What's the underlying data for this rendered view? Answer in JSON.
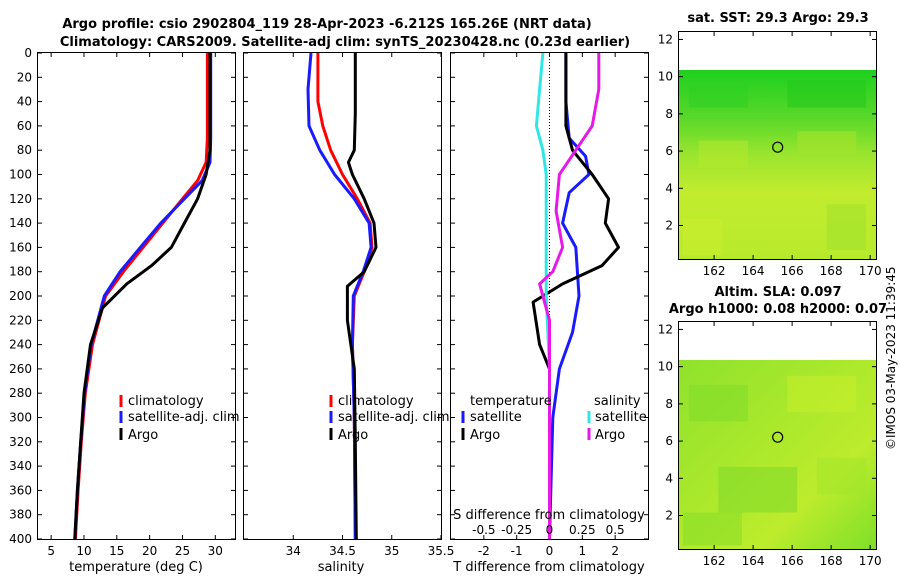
{
  "title_line1": "Argo profile: csio 2902804_119 28-Apr-2023 -6.212S 165.26E (NRT data)",
  "title_line2": "Climatology: CARS2009. Satellite-adj clim: synTS_20230428.nc (0.23d earlier)",
  "side_stamp": "©IMOS 03-May-2023 11:39:45",
  "colors": {
    "climatology": "#ff0000",
    "satellite": "#1a1aff",
    "argo": "#000000",
    "sat_salinity": "#33e6e6",
    "argo_salinity": "#e619e6"
  },
  "chart_data": [
    {
      "type": "line",
      "name": "temperature",
      "xlabel": "temperature (deg C)",
      "xlim": [
        3,
        33
      ],
      "xticks": [
        5,
        10,
        15,
        20,
        25,
        30
      ],
      "ylim": [
        400,
        0
      ],
      "yticks": [
        0,
        20,
        40,
        60,
        80,
        100,
        120,
        140,
        160,
        180,
        200,
        220,
        240,
        260,
        280,
        300,
        320,
        340,
        360,
        380,
        400
      ],
      "legend": [
        "climatology",
        "satellite-adj. clim",
        "Argo"
      ],
      "series": [
        {
          "name": "climatology",
          "color": "#ff0000",
          "points": [
            [
              28.8,
              0
            ],
            [
              28.8,
              40
            ],
            [
              28.8,
              70
            ],
            [
              28.6,
              90
            ],
            [
              27.3,
              105
            ],
            [
              25,
              120
            ],
            [
              22,
              140
            ],
            [
              19,
              160
            ],
            [
              16,
              180
            ],
            [
              13.3,
              200
            ],
            [
              11.3,
              240
            ],
            [
              10.2,
              280
            ],
            [
              9.6,
              320
            ],
            [
              9.1,
              360
            ],
            [
              8.7,
              400
            ]
          ]
        },
        {
          "name": "satellite-adj. clim",
          "color": "#1a1aff",
          "points": [
            [
              29.3,
              0
            ],
            [
              29.3,
              40
            ],
            [
              29.3,
              70
            ],
            [
              29.2,
              90
            ],
            [
              28,
              105
            ],
            [
              25.3,
              120
            ],
            [
              21.7,
              140
            ],
            [
              18.6,
              160
            ],
            [
              15.5,
              180
            ],
            [
              13.1,
              200
            ],
            [
              11.1,
              240
            ],
            [
              10.1,
              280
            ],
            [
              9.5,
              320
            ],
            [
              9.0,
              360
            ],
            [
              8.6,
              400
            ]
          ]
        },
        {
          "name": "Argo",
          "color": "#000000",
          "points": [
            [
              29.2,
              0
            ],
            [
              29.2,
              40
            ],
            [
              29.2,
              80
            ],
            [
              28.6,
              100
            ],
            [
              27.3,
              120
            ],
            [
              25.3,
              140
            ],
            [
              23.3,
              160
            ],
            [
              20.3,
              175
            ],
            [
              16.5,
              190
            ],
            [
              12.8,
              210
            ],
            [
              11.0,
              240
            ],
            [
              10.0,
              280
            ],
            [
              9.5,
              320
            ],
            [
              9.0,
              360
            ],
            [
              8.6,
              400
            ]
          ]
        }
      ]
    },
    {
      "type": "line",
      "name": "salinity",
      "xlabel": "salinity",
      "xlim": [
        33.5,
        35.5
      ],
      "xticks": [
        34,
        34.5,
        35,
        35.5
      ],
      "ylim": [
        400,
        0
      ],
      "legend": [
        "climatology",
        "satellite-adj. clim",
        "Argo"
      ],
      "series": [
        {
          "name": "climatology",
          "color": "#ff0000",
          "points": [
            [
              34.25,
              0
            ],
            [
              34.25,
              40
            ],
            [
              34.3,
              60
            ],
            [
              34.38,
              80
            ],
            [
              34.5,
              100
            ],
            [
              34.65,
              120
            ],
            [
              34.78,
              140
            ],
            [
              34.8,
              160
            ],
            [
              34.72,
              180
            ],
            [
              34.62,
              200
            ],
            [
              34.6,
              240
            ],
            [
              34.62,
              300
            ],
            [
              34.63,
              400
            ]
          ]
        },
        {
          "name": "satellite-adj. clim",
          "color": "#1a1aff",
          "points": [
            [
              34.18,
              0
            ],
            [
              34.15,
              30
            ],
            [
              34.16,
              60
            ],
            [
              34.27,
              80
            ],
            [
              34.42,
              100
            ],
            [
              34.62,
              120
            ],
            [
              34.77,
              140
            ],
            [
              34.79,
              160
            ],
            [
              34.71,
              180
            ],
            [
              34.61,
              200
            ],
            [
              34.6,
              240
            ],
            [
              34.62,
              300
            ],
            [
              34.63,
              400
            ]
          ]
        },
        {
          "name": "Argo",
          "color": "#000000",
          "points": [
            [
              34.63,
              0
            ],
            [
              34.63,
              50
            ],
            [
              34.62,
              80
            ],
            [
              34.56,
              90
            ],
            [
              34.6,
              100
            ],
            [
              34.72,
              120
            ],
            [
              34.82,
              140
            ],
            [
              34.84,
              160
            ],
            [
              34.72,
              180
            ],
            [
              34.55,
              192
            ],
            [
              34.55,
              220
            ],
            [
              34.62,
              260
            ],
            [
              34.63,
              320
            ],
            [
              34.64,
              400
            ]
          ]
        }
      ]
    },
    {
      "type": "line",
      "name": "difference from climatology",
      "xlabel": "T difference from climatology",
      "xlabel_top": "S difference from climatology",
      "xlim": [
        -3,
        3
      ],
      "xticks": [
        -2,
        -1,
        0,
        1,
        2
      ],
      "xtick_labels": [
        "-2",
        "-1",
        "0",
        "1",
        "2"
      ],
      "xticks_top_labels": [
        "-0.5",
        "-0.25",
        "0",
        "0.25",
        "0.5"
      ],
      "ylim": [
        400,
        0
      ],
      "legend_left_title": "temperature",
      "legend_left": [
        "satellite",
        "Argo"
      ],
      "legend_right_title": "salinity",
      "legend_right": [
        "satellite",
        "Argo"
      ],
      "series": [
        {
          "name": "T satellite",
          "color": "#1a1aff",
          "points": [
            [
              0.5,
              0
            ],
            [
              0.5,
              40
            ],
            [
              0.6,
              70
            ],
            [
              1.1,
              85
            ],
            [
              1.2,
              100
            ],
            [
              0.6,
              115
            ],
            [
              0.4,
              140
            ],
            [
              0.8,
              160
            ],
            [
              0.9,
              200
            ],
            [
              0.7,
              230
            ],
            [
              0.3,
              260
            ],
            [
              0.1,
              300
            ],
            [
              0,
              400
            ]
          ]
        },
        {
          "name": "T Argo",
          "color": "#000000",
          "points": [
            [
              0.5,
              0
            ],
            [
              0.5,
              60
            ],
            [
              0.7,
              80
            ],
            [
              1.3,
              100
            ],
            [
              1.8,
              120
            ],
            [
              1.7,
              140
            ],
            [
              2.1,
              160
            ],
            [
              1.6,
              175
            ],
            [
              0.4,
              190
            ],
            [
              -0.5,
              205
            ],
            [
              -0.3,
              240
            ],
            [
              0,
              260
            ],
            [
              0,
              400
            ]
          ]
        },
        {
          "name": "S satellite",
          "color": "#33e6e6",
          "points": [
            [
              -0.2,
              0
            ],
            [
              -0.3,
              30
            ],
            [
              -0.4,
              60
            ],
            [
              -0.2,
              80
            ],
            [
              -0.1,
              100
            ],
            [
              -0.1,
              200
            ],
            [
              0,
              260
            ],
            [
              0,
              400
            ]
          ]
        },
        {
          "name": "S Argo",
          "color": "#e619e6",
          "points": [
            [
              1.5,
              0
            ],
            [
              1.5,
              30
            ],
            [
              1.3,
              60
            ],
            [
              0.8,
              80
            ],
            [
              0.3,
              100
            ],
            [
              0.2,
              130
            ],
            [
              0.4,
              160
            ],
            [
              0.1,
              180
            ],
            [
              -0.3,
              190
            ],
            [
              0,
              220
            ],
            [
              0,
              400
            ]
          ]
        }
      ]
    },
    {
      "type": "heatmap",
      "name": "sst map",
      "title": "sat. SST: 29.3 Argo: 29.3",
      "xlim": [
        160.2,
        170.3
      ],
      "ylim": [
        0.2,
        12.4
      ],
      "xticks": [
        162,
        164,
        166,
        168,
        170
      ],
      "yticks": [
        2,
        4,
        6,
        8,
        10,
        12
      ],
      "data_extent_y": [
        0.2,
        10
      ],
      "marker": [
        165.26,
        6.21
      ]
    },
    {
      "type": "heatmap",
      "name": "sla map",
      "title_line1": "Altim. SLA: 0.097",
      "title_line2": "Argo h1000: 0.08 h2000: 0.07",
      "xlim": [
        160.2,
        170.3
      ],
      "ylim": [
        0.2,
        12.4
      ],
      "xticks": [
        162,
        164,
        166,
        168,
        170
      ],
      "yticks": [
        2,
        4,
        6,
        8,
        10,
        12
      ],
      "data_extent_y": [
        0.2,
        10
      ],
      "marker": [
        165.26,
        6.21
      ]
    }
  ]
}
